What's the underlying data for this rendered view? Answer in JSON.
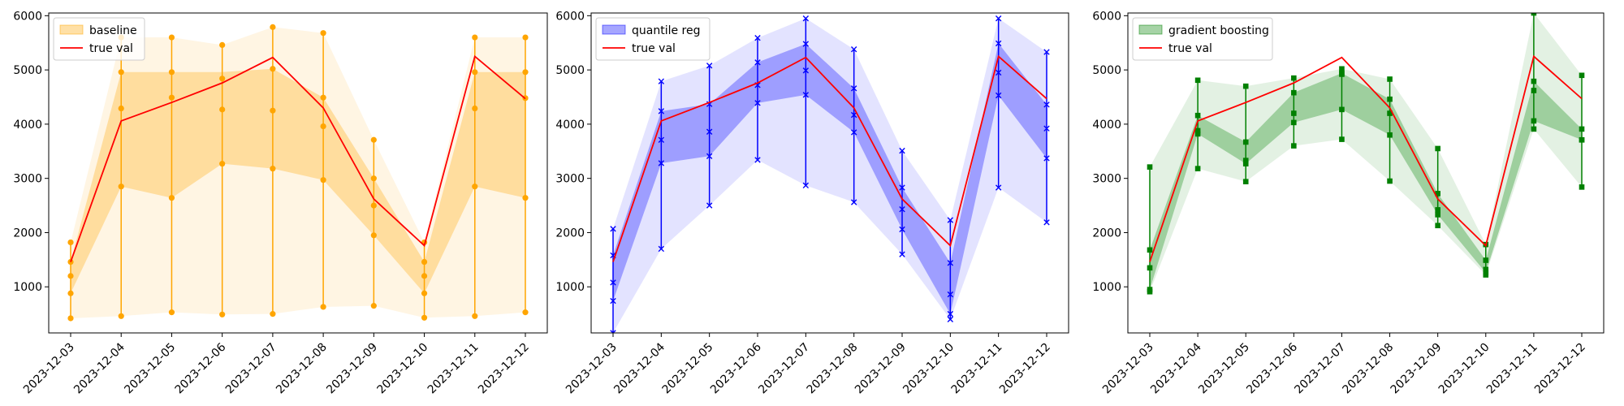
{
  "chart_data": [
    {
      "type": "line",
      "title": "",
      "xlabel": "",
      "ylabel": "",
      "ylim": [
        150,
        6050
      ],
      "yticks": [
        1000,
        2000,
        3000,
        4000,
        5000,
        6000
      ],
      "grid": false,
      "legend_position": "top-left",
      "categories": [
        "2023-12-03",
        "2023-12-04",
        "2023-12-05",
        "2023-12-06",
        "2023-12-07",
        "2023-12-08",
        "2023-12-09",
        "2023-12-10",
        "2023-12-11",
        "2023-12-12"
      ],
      "marker": "circle",
      "band_name": "baseline",
      "band_color": "#ffa500",
      "outer_band": {
        "low": [
          420,
          460,
          530,
          490,
          500,
          630,
          650,
          430,
          460,
          530
        ],
        "high": [
          1820,
          5600,
          5600,
          5460,
          5790,
          5680,
          3710,
          1820,
          5600,
          5600
        ]
      },
      "inner_band": {
        "low": [
          880,
          2850,
          2640,
          3270,
          3180,
          2970,
          1950,
          880,
          2850,
          2640
        ],
        "high": [
          1460,
          4960,
          4960,
          4960,
          5020,
          4490,
          3000,
          1460,
          4960,
          4960
        ]
      },
      "quantile_points": [
        [
          420,
          880,
          1200,
          1460,
          1820
        ],
        [
          460,
          2850,
          4290,
          4960,
          5600
        ],
        [
          530,
          2640,
          4490,
          4960,
          5600
        ],
        [
          490,
          3270,
          4270,
          4840,
          5460
        ],
        [
          500,
          3180,
          4250,
          5020,
          5790
        ],
        [
          630,
          2970,
          3960,
          4490,
          5680
        ],
        [
          650,
          1950,
          2500,
          3000,
          3710
        ],
        [
          430,
          880,
          1200,
          1460,
          1820
        ],
        [
          460,
          2850,
          4290,
          4960,
          5600
        ],
        [
          530,
          2640,
          4480,
          4960,
          5600
        ]
      ],
      "series": [
        {
          "name": "true val",
          "color": "#ff0000",
          "values": [
            1460,
            4060,
            4400,
            4760,
            5230,
            4300,
            2620,
            1760,
            5250,
            4470
          ]
        }
      ]
    },
    {
      "type": "line",
      "title": "",
      "xlabel": "",
      "ylabel": "",
      "ylim": [
        150,
        6050
      ],
      "yticks": [
        1000,
        2000,
        3000,
        4000,
        5000,
        6000
      ],
      "grid": false,
      "legend_position": "top-left",
      "categories": [
        "2023-12-03",
        "2023-12-04",
        "2023-12-05",
        "2023-12-06",
        "2023-12-07",
        "2023-12-08",
        "2023-12-09",
        "2023-12-10",
        "2023-12-11",
        "2023-12-12"
      ],
      "marker": "x",
      "band_name": "quantile reg",
      "band_color": "#0000ff",
      "outer_band": {
        "low": [
          150,
          1700,
          2500,
          3340,
          2870,
          2560,
          1600,
          400,
          2830,
          2190
        ],
        "high": [
          2070,
          4790,
          5080,
          5590,
          5950,
          5380,
          3510,
          2230,
          5950,
          5330
        ]
      },
      "inner_band": {
        "low": [
          740,
          3280,
          3410,
          4390,
          4540,
          3850,
          2060,
          500,
          4530,
          3370
        ],
        "high": [
          1580,
          4240,
          4370,
          5140,
          5480,
          4660,
          2830,
          1440,
          5490,
          4360
        ]
      },
      "quantile_points": [
        [
          150,
          740,
          1080,
          1580,
          2070
        ],
        [
          1700,
          3280,
          3710,
          4240,
          4790
        ],
        [
          2500,
          3410,
          3860,
          4370,
          5080
        ],
        [
          3340,
          4390,
          4720,
          5140,
          5590
        ],
        [
          2870,
          4540,
          4990,
          5480,
          5950
        ],
        [
          2560,
          3850,
          4170,
          4660,
          5380
        ],
        [
          1600,
          2060,
          2430,
          2830,
          3510
        ],
        [
          400,
          500,
          860,
          1440,
          2230
        ],
        [
          2830,
          4530,
          4950,
          5490,
          5950
        ],
        [
          2190,
          3370,
          3920,
          4360,
          5330
        ]
      ],
      "series": [
        {
          "name": "true val",
          "color": "#ff0000",
          "values": [
            1460,
            4060,
            4400,
            4760,
            5230,
            4300,
            2620,
            1760,
            5250,
            4470
          ]
        }
      ]
    },
    {
      "type": "line",
      "title": "",
      "xlabel": "",
      "ylabel": "",
      "ylim": [
        150,
        6050
      ],
      "yticks": [
        1000,
        2000,
        3000,
        4000,
        5000,
        6000
      ],
      "grid": false,
      "legend_position": "top-left",
      "categories": [
        "2023-12-03",
        "2023-12-04",
        "2023-12-05",
        "2023-12-06",
        "2023-12-07",
        "2023-12-08",
        "2023-12-09",
        "2023-12-10",
        "2023-12-11",
        "2023-12-12"
      ],
      "marker": "square",
      "band_name": "gradient boosting",
      "band_color": "#008000",
      "outer_band": {
        "low": [
          910,
          3180,
          2940,
          3600,
          3720,
          2950,
          2130,
          1220,
          3910,
          2840
        ],
        "high": [
          3210,
          4810,
          4700,
          4850,
          5020,
          4830,
          3550,
          1780,
          6050,
          4900
        ]
      },
      "inner_band": {
        "low": [
          950,
          3820,
          3270,
          4030,
          4270,
          3800,
          2330,
          1260,
          4060,
          3710
        ],
        "high": [
          1680,
          4160,
          3670,
          4580,
          4940,
          4460,
          2720,
          1490,
          4790,
          3910
        ]
      },
      "quantile_points": [
        [
          910,
          950,
          1350,
          1680,
          3210
        ],
        [
          3180,
          3820,
          3880,
          4160,
          4810
        ],
        [
          2940,
          3270,
          3330,
          3670,
          4700
        ],
        [
          3600,
          4030,
          4200,
          4580,
          4850
        ],
        [
          3720,
          4270,
          4920,
          4940,
          5020
        ],
        [
          2950,
          3800,
          4200,
          4460,
          4830
        ],
        [
          2130,
          2330,
          2420,
          2720,
          3550
        ],
        [
          1220,
          1260,
          1320,
          1490,
          1780
        ],
        [
          3910,
          4060,
          4620,
          4790,
          6050
        ],
        [
          2840,
          3710,
          3710,
          3910,
          4900
        ]
      ],
      "series": [
        {
          "name": "true val",
          "color": "#ff0000",
          "values": [
            1460,
            4060,
            4400,
            4760,
            5230,
            4300,
            2620,
            1760,
            5250,
            4470
          ]
        }
      ]
    }
  ]
}
